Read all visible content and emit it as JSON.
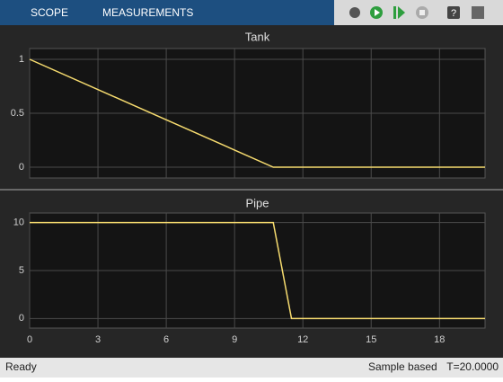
{
  "toolbar": {
    "tabs": [
      "SCOPE",
      "MEASUREMENTS"
    ]
  },
  "status": {
    "state": "Ready",
    "mode": "Sample based",
    "time": "T=20.0000"
  },
  "chart_data": [
    {
      "type": "line",
      "title": "Tank",
      "x": [
        0,
        10.7,
        20
      ],
      "series": [
        {
          "color": "#f7dc6f",
          "values": [
            1,
            0,
            0
          ]
        }
      ],
      "xlim": [
        0,
        20
      ],
      "ylim": [
        -0.1,
        1.1
      ],
      "yticks": [
        0,
        0.5,
        1
      ],
      "grid": true
    },
    {
      "type": "line",
      "title": "Pipe",
      "x": [
        0,
        10.7,
        11.5,
        20
      ],
      "series": [
        {
          "color": "#f7dc6f",
          "values": [
            10,
            10,
            0,
            0
          ]
        }
      ],
      "xlim": [
        0,
        20
      ],
      "ylim": [
        -1,
        11
      ],
      "xticks": [
        0,
        3,
        6,
        9,
        12,
        15,
        18
      ],
      "yticks": [
        0,
        5,
        10
      ],
      "grid": true
    }
  ]
}
